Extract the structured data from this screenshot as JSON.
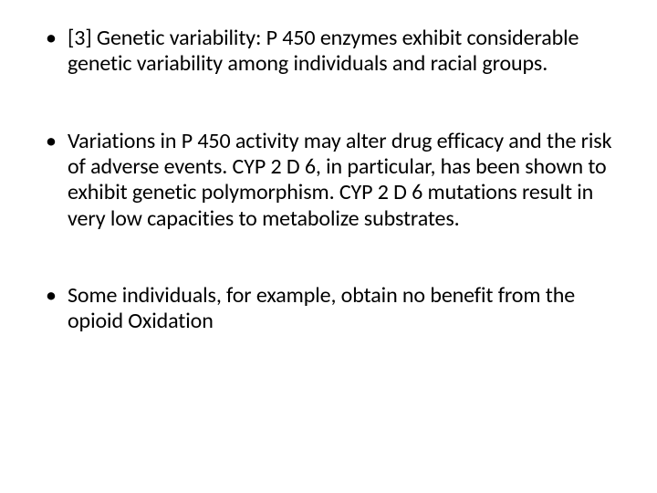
{
  "slide": {
    "background_color": "#ffffff",
    "text_color": "#000000",
    "font_family": "Calibri",
    "font_size_pt": 24,
    "line_height": 1.18,
    "bullet_char": "•",
    "bullets": [
      "[3] Genetic variability: P 450 enzymes exhibit considerable genetic variability among individuals and racial groups.",
      "Variations in P 450 activity may alter drug efficacy and the risk of adverse events. CYP 2 D 6, in particular, has been shown to exhibit genetic polymorphism. CYP 2 D 6 mutations result in very low capacities to metabolize substrates.",
      " Some individuals, for example, obtain no benefit from the opioid Oxidation"
    ]
  }
}
